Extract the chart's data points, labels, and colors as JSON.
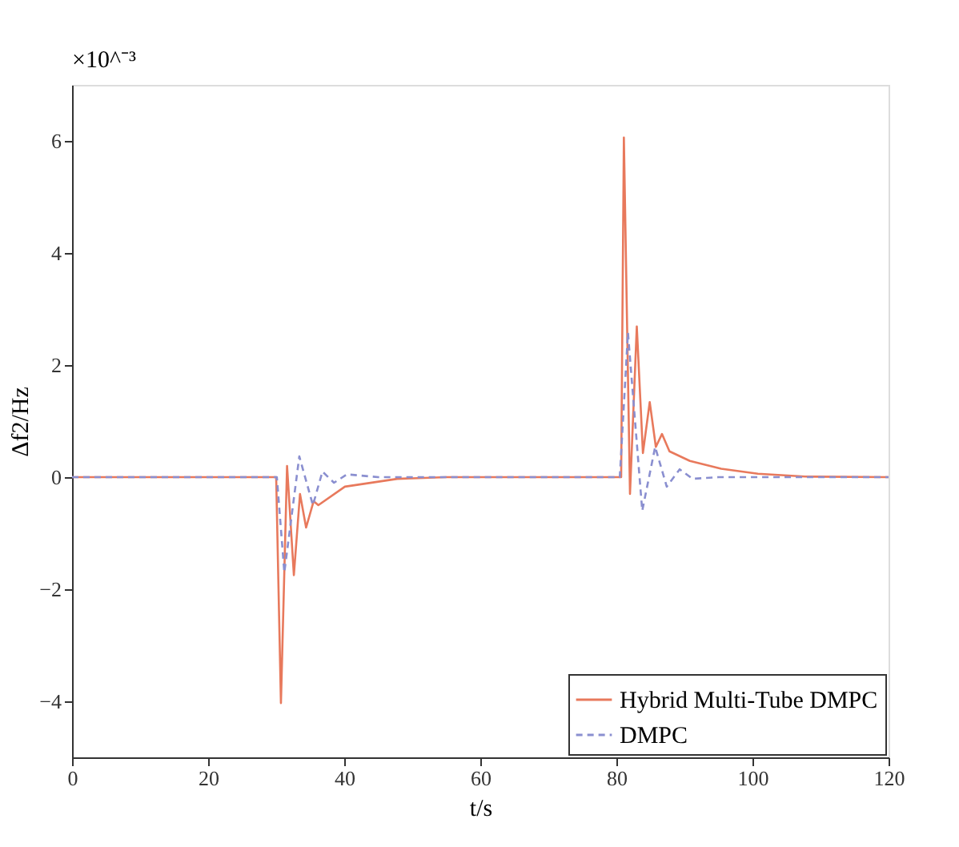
{
  "chart_data": {
    "type": "line",
    "xlabel": "t/s",
    "ylabel": "Δf2/Hz",
    "annotations": [
      "×10^⁻³"
    ],
    "xlim": [
      0,
      120
    ],
    "xticks": [
      0,
      20,
      40,
      60,
      80,
      100,
      120
    ],
    "ylim": [
      -5,
      7
    ],
    "yticks": [
      -4,
      -2,
      0,
      2,
      4,
      6
    ],
    "grid": false,
    "legend": "bottom right",
    "marker": "none",
    "series": [
      {
        "name": "Hybrid Multi-Tube DMPC",
        "color": "#e8795c",
        "line_style": "solid",
        "x": [
          0,
          30,
          30.7,
          31.6,
          32.6,
          33.5,
          34.4,
          35.5,
          36.2,
          40.1,
          47.8,
          55,
          80,
          80.7,
          81.1,
          82.0,
          83.0,
          83.9,
          84.9,
          85.8,
          86.7,
          87.8,
          90.8,
          95.4,
          100.8,
          107.7,
          120
        ],
        "values": [
          0,
          0,
          -4.03,
          0.2,
          -1.75,
          -0.3,
          -0.9,
          -0.43,
          -0.5,
          -0.17,
          -0.03,
          0,
          0,
          0,
          6.06,
          -0.3,
          2.69,
          0.43,
          1.34,
          0.54,
          0.77,
          0.46,
          0.29,
          0.15,
          0.06,
          0.01,
          0
        ]
      },
      {
        "name": "DMPC",
        "color": "#8a8fd0",
        "line_style": "dashed",
        "x": [
          0,
          30.1,
          31.2,
          33.4,
          35.4,
          36.8,
          38.5,
          40.4,
          45,
          80.5,
          81.7,
          83.8,
          85.7,
          87.4,
          89.3,
          91.2,
          95,
          120
        ],
        "values": [
          0,
          0,
          -1.7,
          0.37,
          -0.5,
          0.1,
          -0.1,
          0.05,
          0,
          0,
          2.58,
          -0.6,
          0.54,
          -0.17,
          0.14,
          -0.03,
          0,
          0
        ]
      }
    ]
  }
}
